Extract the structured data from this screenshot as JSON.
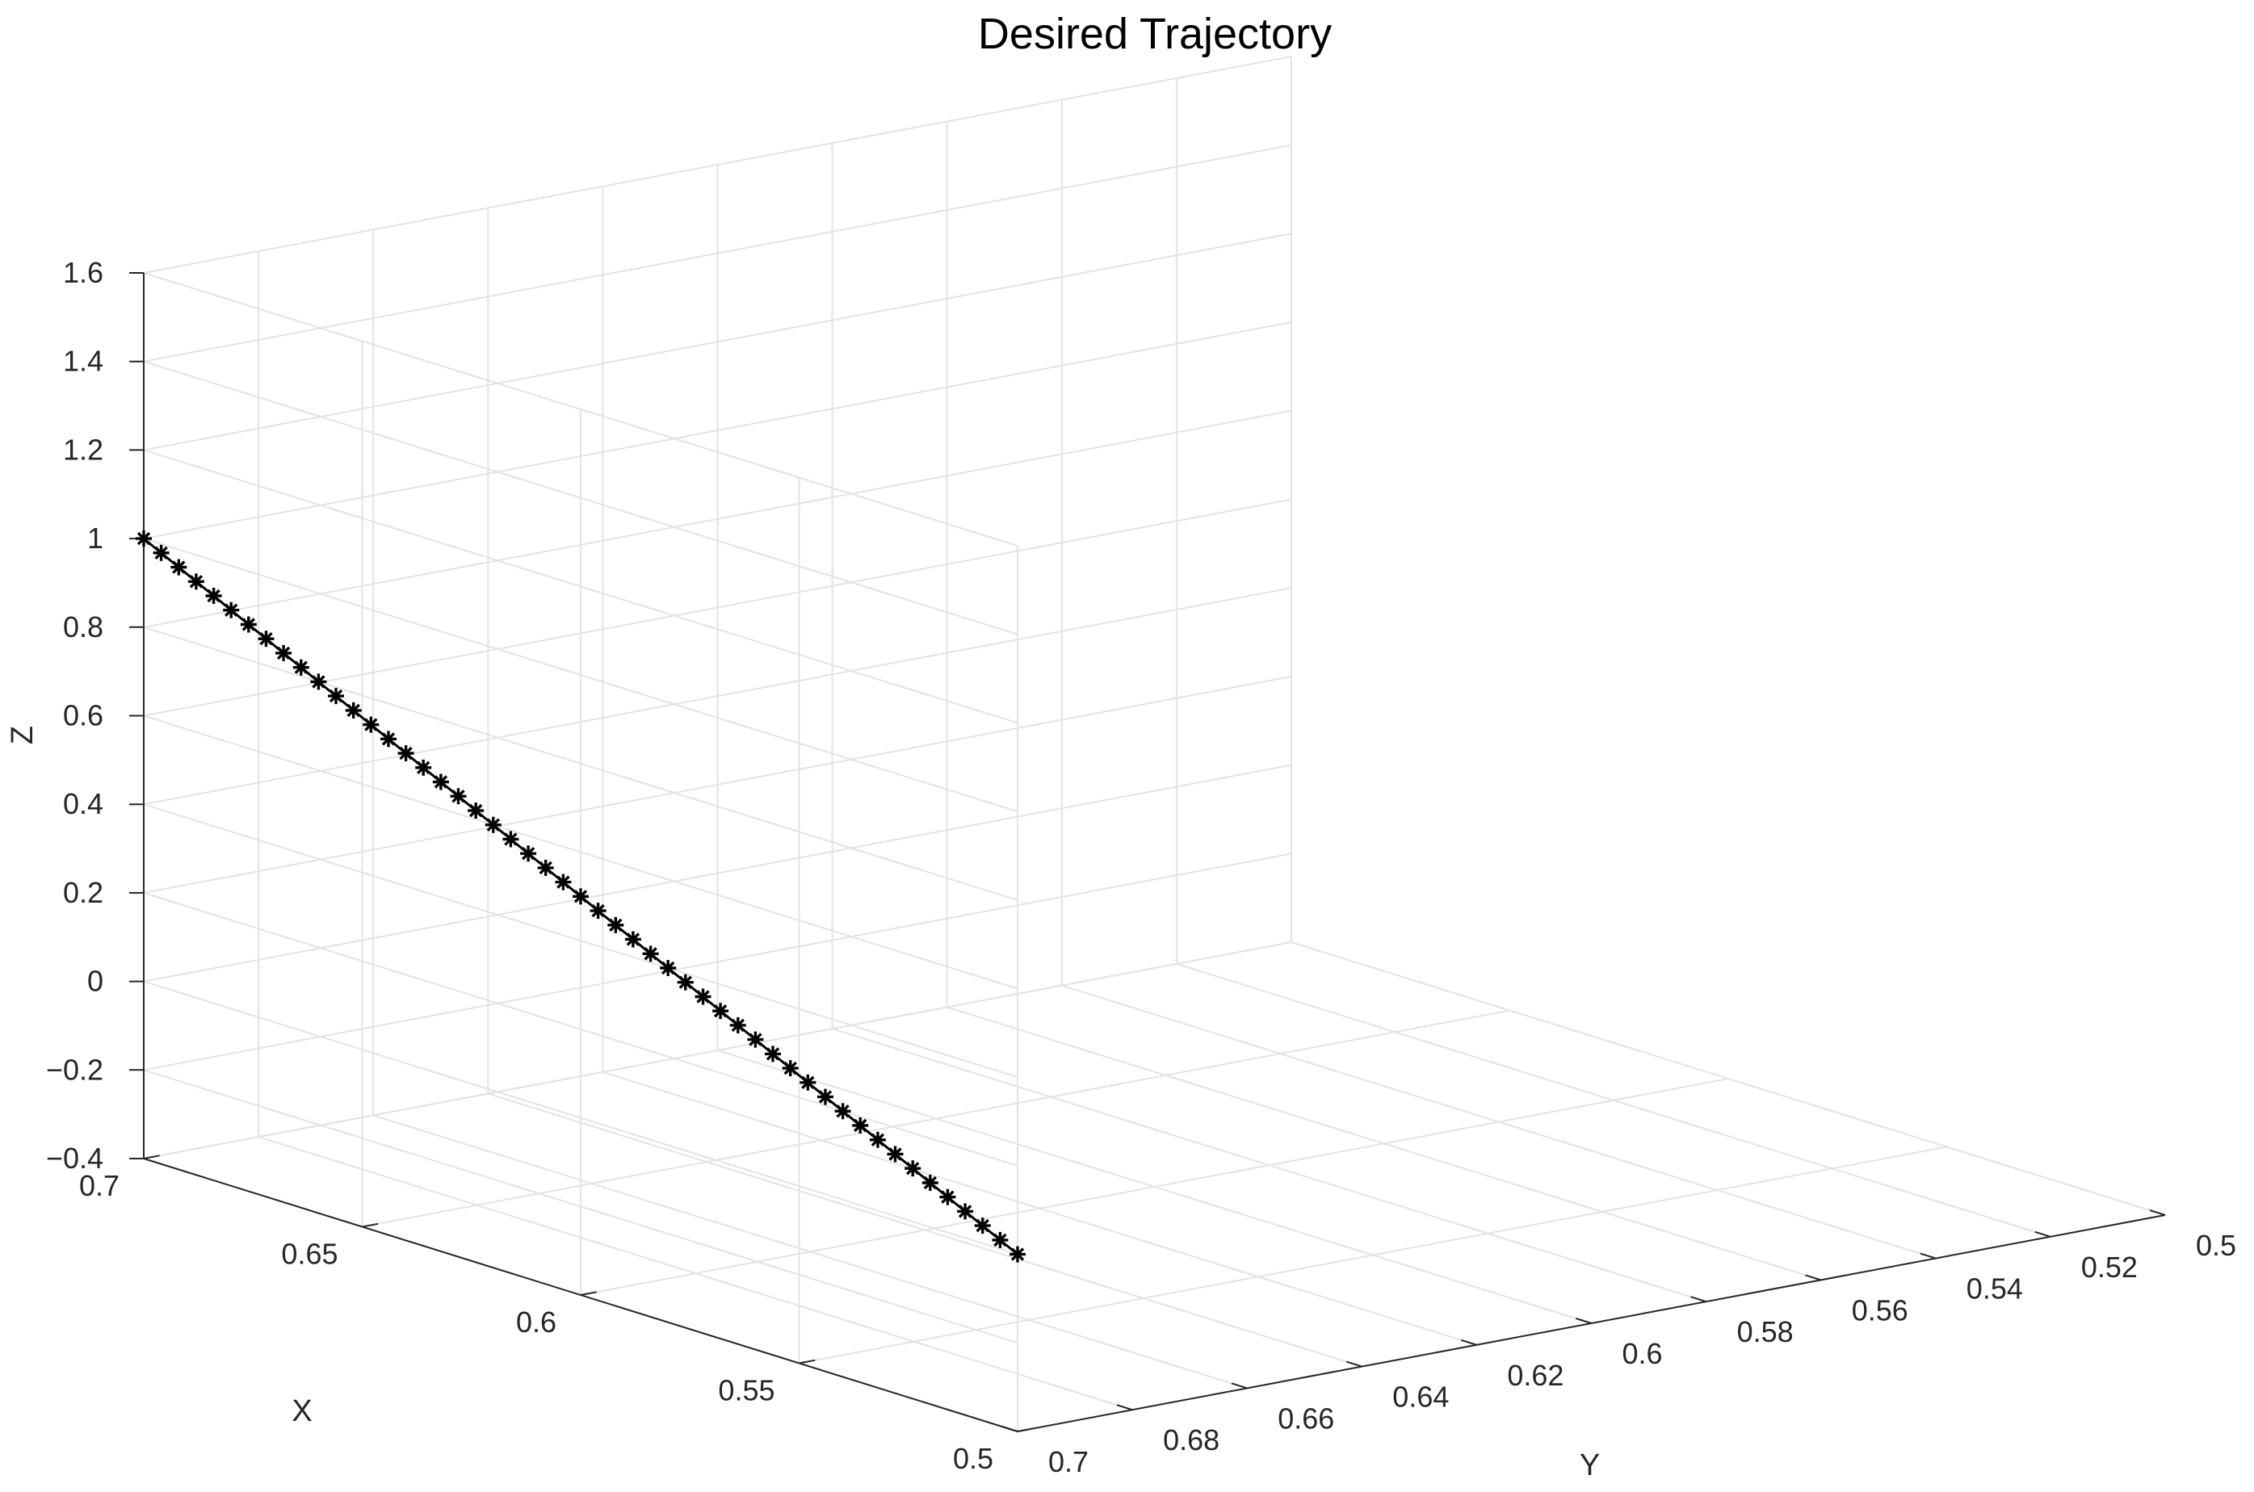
{
  "chart_data": {
    "type": "scatter3d",
    "title": "Desired Trajectory",
    "xlabel": "X",
    "ylabel": "Y",
    "zlabel": "Z",
    "xlim": [
      0.5,
      0.7
    ],
    "ylim": [
      0.5,
      0.7
    ],
    "zlim": [
      -0.4,
      1.6
    ],
    "x_ticks": [
      "0.5",
      "0.55",
      "0.6",
      "0.65",
      "0.7"
    ],
    "y_ticks": [
      "0.5",
      "0.52",
      "0.54",
      "0.56",
      "0.58",
      "0.6",
      "0.62",
      "0.64",
      "0.66",
      "0.68",
      "0.7"
    ],
    "z_ticks": [
      "−0.4",
      "−0.2",
      "0",
      "0.2",
      "0.4",
      "0.6",
      "0.8",
      "1",
      "1.2",
      "1.4",
      "1.6"
    ],
    "grid": true,
    "marker": "asterisk",
    "line_color": "#000000",
    "series": [
      {
        "start": {
          "x": 0.7,
          "y": 0.7,
          "z": 1.0
        },
        "end": {
          "x": 0.5,
          "y": 0.7,
          "z": 0.0
        },
        "n_points": 51,
        "x": [
          0.7,
          0.696,
          0.692,
          0.688,
          0.684,
          0.68,
          0.676,
          0.672,
          0.668,
          0.664,
          0.66,
          0.656,
          0.652,
          0.648,
          0.644,
          0.64,
          0.636,
          0.632,
          0.628,
          0.624,
          0.62,
          0.616,
          0.612,
          0.608,
          0.604,
          0.6,
          0.596,
          0.592,
          0.588,
          0.584,
          0.58,
          0.576,
          0.572,
          0.568,
          0.564,
          0.56,
          0.556,
          0.552,
          0.548,
          0.544,
          0.54,
          0.536,
          0.532,
          0.528,
          0.524,
          0.52,
          0.516,
          0.512,
          0.508,
          0.504,
          0.5
        ],
        "y": [
          0.7,
          0.7,
          0.7,
          0.7,
          0.7,
          0.7,
          0.7,
          0.7,
          0.7,
          0.7,
          0.7,
          0.7,
          0.7,
          0.7,
          0.7,
          0.7,
          0.7,
          0.7,
          0.7,
          0.7,
          0.7,
          0.7,
          0.7,
          0.7,
          0.7,
          0.7,
          0.7,
          0.7,
          0.7,
          0.7,
          0.7,
          0.7,
          0.7,
          0.7,
          0.7,
          0.7,
          0.7,
          0.7,
          0.7,
          0.7,
          0.7,
          0.7,
          0.7,
          0.7,
          0.7,
          0.7,
          0.7,
          0.7,
          0.7,
          0.7,
          0.7
        ],
        "z": [
          1.0,
          0.98,
          0.96,
          0.94,
          0.92,
          0.9,
          0.88,
          0.86,
          0.84,
          0.82,
          0.8,
          0.78,
          0.76,
          0.74,
          0.72,
          0.7,
          0.68,
          0.66,
          0.64,
          0.62,
          0.6,
          0.58,
          0.56,
          0.54,
          0.52,
          0.5,
          0.48,
          0.46,
          0.44,
          0.42,
          0.4,
          0.38,
          0.36,
          0.34,
          0.32,
          0.3,
          0.28,
          0.26,
          0.24,
          0.22,
          0.2,
          0.18,
          0.16,
          0.14,
          0.12,
          0.1,
          0.08,
          0.06,
          0.04,
          0.02,
          0.0
        ]
      }
    ]
  }
}
